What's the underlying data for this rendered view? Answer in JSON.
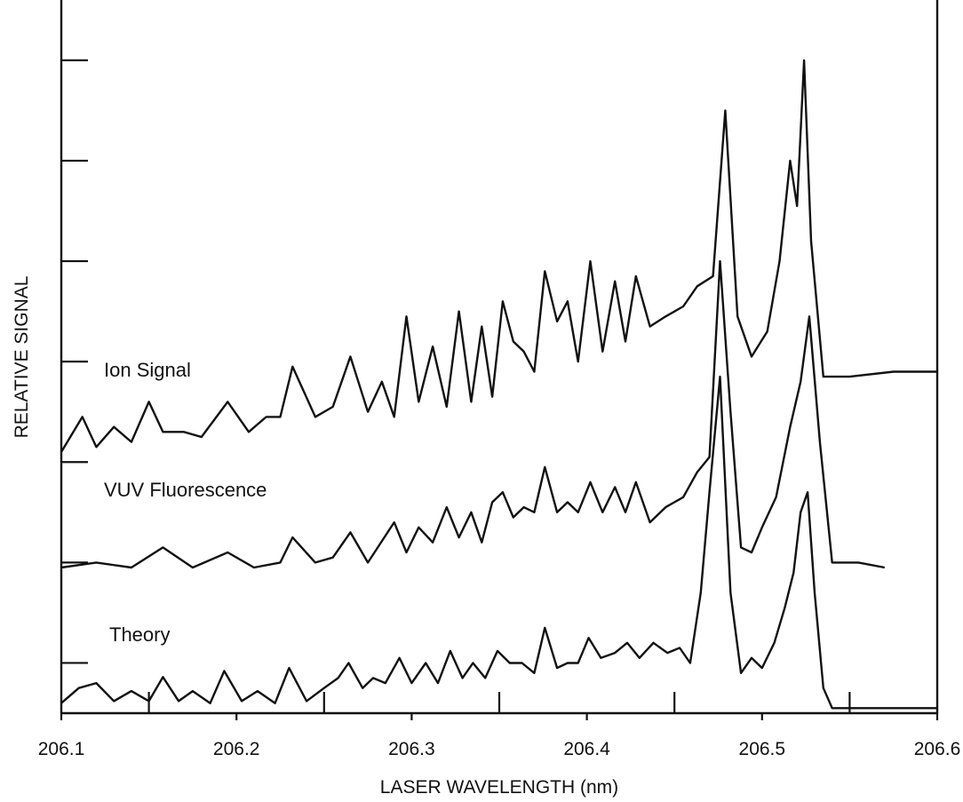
{
  "chart_data": {
    "type": "line",
    "title": "",
    "xlabel": "LASER WAVELENGTH (nm)",
    "ylabel": "RELATIVE SIGNAL",
    "xlim": [
      206.1,
      206.6
    ],
    "ylim": [
      0,
      7.1
    ],
    "x_ticks": [
      "206.1",
      "206.2",
      "206.3",
      "206.4",
      "206.5",
      "206.6"
    ],
    "x_ticks_values": [
      206.1,
      206.2,
      206.3,
      206.4,
      206.5,
      206.6
    ],
    "x_minor_ticks": [
      206.15,
      206.25,
      206.35,
      206.45,
      206.55
    ],
    "y_tick_values": [
      0.5,
      1.5,
      2.5,
      3.5,
      4.5,
      5.5,
      6.5
    ],
    "grid": false,
    "series": [
      {
        "name": "Ion Signal",
        "label": "Ion Signal",
        "x": [
          206.1,
          206.112,
          206.12,
          206.13,
          206.14,
          206.15,
          206.158,
          206.17,
          206.18,
          206.195,
          206.207,
          206.217,
          206.225,
          206.232,
          206.245,
          206.255,
          206.265,
          206.275,
          206.283,
          206.29,
          206.297,
          206.304,
          206.312,
          206.32,
          206.327,
          206.334,
          206.34,
          206.346,
          206.352,
          206.358,
          206.364,
          206.37,
          206.376,
          206.383,
          206.389,
          206.395,
          206.402,
          206.409,
          206.416,
          206.422,
          206.428,
          206.436,
          206.445,
          206.455,
          206.463,
          206.472,
          206.479,
          206.486,
          206.494,
          206.503,
          206.51,
          206.516,
          206.52,
          206.524,
          206.528,
          206.535,
          206.55,
          206.575,
          206.6
        ],
        "values": [
          2.6,
          2.95,
          2.65,
          2.85,
          2.7,
          3.1,
          2.8,
          2.8,
          2.75,
          3.1,
          2.8,
          2.95,
          2.95,
          3.45,
          2.95,
          3.05,
          3.55,
          3.0,
          3.3,
          2.95,
          3.95,
          3.1,
          3.65,
          3.05,
          4.0,
          3.1,
          3.85,
          3.15,
          4.1,
          3.7,
          3.6,
          3.4,
          4.4,
          3.9,
          4.1,
          3.5,
          4.5,
          3.6,
          4.3,
          3.7,
          4.35,
          3.85,
          3.95,
          4.05,
          4.25,
          4.35,
          6.0,
          3.95,
          3.55,
          3.8,
          4.5,
          5.5,
          5.05,
          6.5,
          4.7,
          3.35,
          3.35,
          3.4,
          3.4
        ]
      },
      {
        "name": "VUV Fluorescence",
        "label": "VUV Fluorescence",
        "x": [
          206.1,
          206.12,
          206.14,
          206.158,
          206.175,
          206.195,
          206.21,
          206.225,
          206.232,
          206.245,
          206.255,
          206.265,
          206.275,
          206.29,
          206.297,
          206.304,
          206.312,
          206.32,
          206.327,
          206.334,
          206.34,
          206.346,
          206.352,
          206.358,
          206.364,
          206.37,
          206.376,
          206.383,
          206.389,
          206.395,
          206.402,
          206.409,
          206.416,
          206.422,
          206.428,
          206.436,
          206.445,
          206.455,
          206.463,
          206.47,
          206.476,
          206.482,
          206.488,
          206.494,
          206.5,
          206.508,
          206.516,
          206.522,
          206.527,
          206.533,
          206.54,
          206.555,
          206.57
        ],
        "values": [
          1.45,
          1.5,
          1.45,
          1.65,
          1.45,
          1.6,
          1.45,
          1.5,
          1.75,
          1.5,
          1.55,
          1.8,
          1.5,
          1.9,
          1.6,
          1.85,
          1.7,
          2.05,
          1.75,
          2.0,
          1.7,
          2.1,
          2.2,
          1.95,
          2.05,
          2.0,
          2.45,
          2.0,
          2.1,
          2.0,
          2.3,
          2.0,
          2.25,
          2.0,
          2.3,
          1.9,
          2.05,
          2.15,
          2.4,
          2.55,
          4.5,
          3.0,
          1.65,
          1.6,
          1.85,
          2.15,
          2.85,
          3.3,
          3.95,
          2.7,
          1.5,
          1.5,
          1.45
        ]
      },
      {
        "name": "Theory",
        "label": "Theory",
        "x": [
          206.1,
          206.11,
          206.12,
          206.13,
          206.14,
          206.15,
          206.158,
          206.167,
          206.175,
          206.185,
          206.193,
          206.203,
          206.212,
          206.222,
          206.23,
          206.24,
          206.25,
          206.258,
          206.264,
          206.272,
          206.278,
          206.285,
          206.293,
          206.3,
          206.308,
          206.315,
          206.322,
          206.329,
          206.335,
          206.342,
          206.349,
          206.356,
          206.363,
          206.37,
          206.376,
          206.383,
          206.389,
          206.395,
          206.401,
          206.408,
          206.416,
          206.423,
          206.43,
          206.438,
          206.446,
          206.453,
          206.459,
          206.465,
          206.47,
          206.476,
          206.482,
          206.488,
          206.494,
          206.5,
          206.507,
          206.513,
          206.518,
          206.522,
          206.526,
          206.53,
          206.535,
          206.54,
          206.56,
          206.58,
          206.6
        ],
        "values": [
          0.1,
          0.25,
          0.3,
          0.12,
          0.22,
          0.12,
          0.36,
          0.12,
          0.22,
          0.1,
          0.42,
          0.12,
          0.22,
          0.1,
          0.45,
          0.12,
          0.25,
          0.35,
          0.5,
          0.25,
          0.35,
          0.3,
          0.55,
          0.3,
          0.5,
          0.3,
          0.62,
          0.35,
          0.5,
          0.35,
          0.62,
          0.5,
          0.5,
          0.4,
          0.85,
          0.45,
          0.5,
          0.5,
          0.75,
          0.55,
          0.6,
          0.7,
          0.55,
          0.7,
          0.6,
          0.65,
          0.5,
          1.2,
          2.2,
          3.35,
          1.2,
          0.4,
          0.55,
          0.45,
          0.7,
          1.05,
          1.4,
          2.0,
          2.2,
          1.2,
          0.25,
          0.05,
          0.05,
          0.05,
          0.05
        ]
      }
    ]
  }
}
